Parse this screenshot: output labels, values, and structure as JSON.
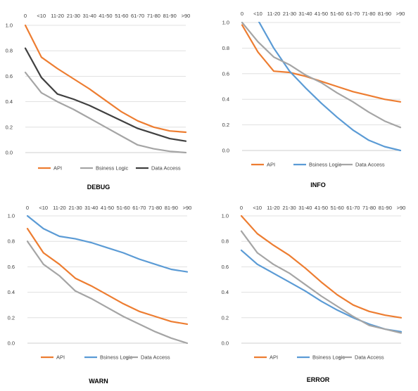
{
  "chart_data": [
    {
      "type": "line",
      "title": "DEBUG",
      "categories": [
        "0",
        "<10",
        "11-20",
        "21-30",
        "31-40",
        "41-50",
        "51-60",
        "61-70",
        "71-80",
        "81-90",
        ">90"
      ],
      "y_ticks": [
        "0.0",
        "0.2",
        "0.4",
        "0.6",
        "0.8",
        "1.0"
      ],
      "ylim": [
        0,
        1.0
      ],
      "grid": true,
      "legend_position": "bottom",
      "series": [
        {
          "name": "API",
          "color": "#ed7d31",
          "values": [
            1.0,
            0.75,
            0.66,
            0.58,
            0.5,
            0.41,
            0.32,
            0.25,
            0.2,
            0.17,
            0.16
          ]
        },
        {
          "name": "Bsiness Logic",
          "color": "#a5a5a5",
          "values": [
            0.63,
            0.47,
            0.4,
            0.34,
            0.27,
            0.2,
            0.13,
            0.06,
            0.03,
            0.01,
            0.0
          ]
        },
        {
          "name": "Data Access",
          "color": "#404040",
          "values": [
            0.82,
            0.59,
            0.46,
            0.42,
            0.37,
            0.31,
            0.25,
            0.19,
            0.15,
            0.11,
            0.09
          ]
        }
      ]
    },
    {
      "type": "line",
      "title": "INFO",
      "categories": [
        "0",
        "<10",
        "11-20",
        "21-30",
        "31-40",
        "41-50",
        "51-60",
        "61-70",
        "71-80",
        "81-90",
        ">90"
      ],
      "y_ticks": [
        "0.0",
        "0.2",
        "0.4",
        "0.6",
        "0.8",
        "1.0"
      ],
      "ylim": [
        0,
        1.0
      ],
      "grid": true,
      "legend_position": "bottom",
      "series": [
        {
          "name": "API",
          "color": "#ed7d31",
          "values": [
            0.98,
            0.77,
            0.62,
            0.61,
            0.58,
            0.54,
            0.5,
            0.46,
            0.43,
            0.4,
            0.38
          ]
        },
        {
          "name": "Bsiness Logic",
          "color": "#5b9bd5",
          "values": [
            1.12,
            1.02,
            0.8,
            0.62,
            0.49,
            0.37,
            0.26,
            0.16,
            0.08,
            0.03,
            0.0
          ]
        },
        {
          "name": "Data Access",
          "color": "#a5a5a5",
          "values": [
            1.0,
            0.85,
            0.73,
            0.67,
            0.59,
            0.53,
            0.45,
            0.38,
            0.3,
            0.23,
            0.18
          ]
        }
      ]
    },
    {
      "type": "line",
      "title": "WARN",
      "categories": [
        "0",
        "<10",
        "11-20",
        "21-30",
        "31-40",
        "41-50",
        "51-60",
        "61-70",
        "71-80",
        "81-90",
        ">90"
      ],
      "y_ticks": [
        "0.0",
        "0.2",
        "0.4",
        "0.6",
        "0.8",
        "1.0"
      ],
      "ylim": [
        0,
        1.0
      ],
      "grid": true,
      "legend_position": "bottom",
      "series": [
        {
          "name": "API",
          "color": "#ed7d31",
          "values": [
            0.9,
            0.71,
            0.62,
            0.51,
            0.45,
            0.38,
            0.31,
            0.25,
            0.21,
            0.17,
            0.15
          ]
        },
        {
          "name": "Bsiness Logic",
          "color": "#5b9bd5",
          "values": [
            1.0,
            0.9,
            0.84,
            0.82,
            0.79,
            0.75,
            0.71,
            0.66,
            0.62,
            0.58,
            0.56
          ]
        },
        {
          "name": "Data Access",
          "color": "#a5a5a5",
          "values": [
            0.8,
            0.62,
            0.53,
            0.41,
            0.35,
            0.28,
            0.21,
            0.15,
            0.09,
            0.04,
            0.0
          ]
        }
      ]
    },
    {
      "type": "line",
      "title": "ERROR",
      "categories": [
        "0",
        "<10",
        "11-20",
        "21-30",
        "31-40",
        "41-50",
        "51-60",
        "61-70",
        "71-80",
        "81-90",
        ">90"
      ],
      "y_ticks": [
        "0.0",
        "0.2",
        "0.4",
        "0.6",
        "0.8",
        "1.0"
      ],
      "ylim": [
        0,
        1.0
      ],
      "grid": true,
      "legend_position": "bottom",
      "series": [
        {
          "name": "API",
          "color": "#ed7d31",
          "values": [
            1.0,
            0.86,
            0.77,
            0.69,
            0.59,
            0.48,
            0.38,
            0.3,
            0.25,
            0.22,
            0.2
          ]
        },
        {
          "name": "Bsiness Logic",
          "color": "#5b9bd5",
          "values": [
            0.73,
            0.62,
            0.55,
            0.48,
            0.41,
            0.33,
            0.26,
            0.2,
            0.15,
            0.11,
            0.09
          ]
        },
        {
          "name": "Data Access",
          "color": "#a5a5a5",
          "values": [
            0.88,
            0.71,
            0.62,
            0.55,
            0.46,
            0.37,
            0.29,
            0.21,
            0.14,
            0.11,
            0.08
          ]
        }
      ]
    }
  ]
}
